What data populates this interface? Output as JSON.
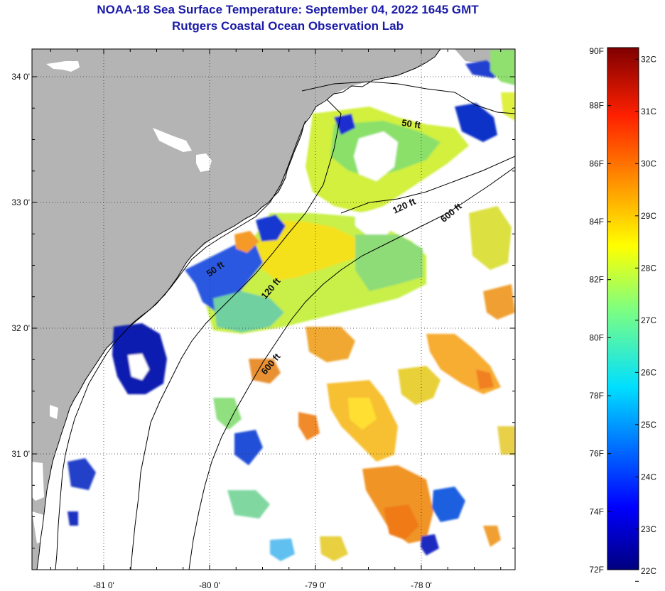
{
  "header": {
    "title": "NOAA-18 Sea Surface Temperature:  September 04, 2022 1645 GMT",
    "subtitle": "Rutgers Coastal Ocean Observation Lab"
  },
  "map": {
    "lat_ticks": [
      {
        "label": "34 0'",
        "value": 34.0
      },
      {
        "label": "33 0'",
        "value": 33.0
      },
      {
        "label": "32 0'",
        "value": 32.0
      },
      {
        "label": "31 0'",
        "value": 31.0
      }
    ],
    "lon_ticks": [
      {
        "label": "-81 0'",
        "value": -81.0
      },
      {
        "label": "-80 0'",
        "value": -80.0
      },
      {
        "label": "-79 0'",
        "value": -79.0
      },
      {
        "label": "-78 0'",
        "value": -78.0
      }
    ],
    "contour_labels": [
      {
        "label": "50 ft",
        "lon": -78.1,
        "lat": 33.6,
        "angle": 8
      },
      {
        "label": "50 ft",
        "lon": -79.93,
        "lat": 32.45,
        "angle": -35
      },
      {
        "label": "120 ft",
        "lon": -78.15,
        "lat": 32.95,
        "angle": -25
      },
      {
        "label": "120 ft",
        "lon": -79.4,
        "lat": 32.3,
        "angle": -50
      },
      {
        "label": "600 ft",
        "lon": -77.7,
        "lat": 32.9,
        "angle": -40
      },
      {
        "label": "600 ft",
        "lon": -79.4,
        "lat": 31.7,
        "angle": -50
      }
    ]
  },
  "colorbar": {
    "fahrenheit": [
      "90F",
      "88F",
      "86F",
      "84F",
      "82F",
      "80F",
      "78F",
      "76F",
      "74F",
      "72F"
    ],
    "celsius": [
      "32C",
      "31C",
      "30C",
      "29C",
      "28C",
      "27C",
      "26C",
      "25C",
      "24C",
      "23C",
      "22C"
    ]
  }
}
